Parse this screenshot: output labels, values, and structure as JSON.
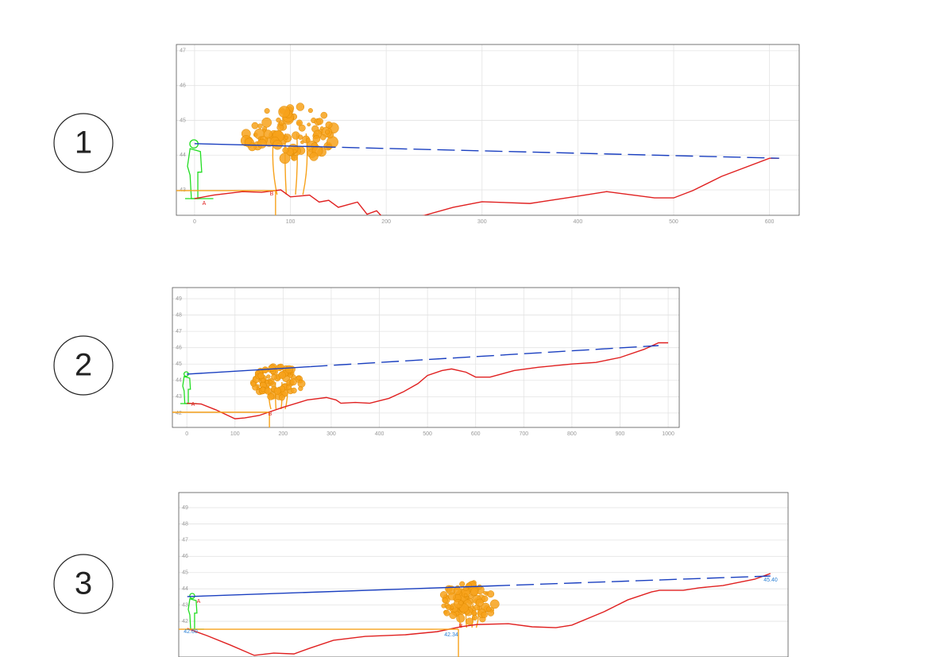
{
  "chart_data": [
    {
      "type": "line",
      "label": "1",
      "xlim": [
        -19,
        631
      ],
      "ylim": [
        42.27,
        47.18
      ],
      "xticks": [
        0,
        100,
        200,
        300,
        400,
        500,
        600
      ],
      "yticks": [
        43,
        44,
        45,
        46,
        47
      ],
      "grid": true,
      "annotations": [
        "A",
        "B"
      ],
      "series": [
        {
          "color": "#e02020",
          "style": "solid",
          "x": [
            0,
            20,
            50,
            70,
            90,
            100,
            120,
            130,
            140,
            150,
            170,
            180,
            190,
            200,
            230,
            240,
            270,
            300,
            350,
            400,
            430,
            480,
            500,
            520,
            550,
            600,
            610
          ],
          "values": [
            42.75,
            42.85,
            42.95,
            42.93,
            43.0,
            42.8,
            42.85,
            42.65,
            42.7,
            42.5,
            42.65,
            42.3,
            42.4,
            42.1,
            42.2,
            42.27,
            42.5,
            42.66,
            42.61,
            42.82,
            42.95,
            42.77,
            42.77,
            42.98,
            43.39,
            43.91,
            43.91
          ]
        },
        {
          "color": "#1a3fc0",
          "style": "solid",
          "x": [
            0,
            129
          ],
          "values": [
            44.33,
            44.24
          ]
        },
        {
          "color": "#1a3fc0",
          "style": "dashed",
          "x": [
            129,
            610
          ],
          "values": [
            44.24,
            43.91
          ]
        },
        {
          "color": "#f7a21b",
          "style": "solid",
          "x": [
            -19,
            84.5
          ],
          "values": [
            42.98,
            42.98
          ]
        },
        {
          "color": "#f7a21b",
          "style": "solid",
          "x": [
            84.5,
            84.5
          ],
          "values": [
            42.98,
            42.27
          ]
        }
      ]
    },
    {
      "type": "line",
      "label": "2",
      "xlim": [
        -30,
        1023
      ],
      "ylim": [
        41.12,
        49.68
      ],
      "xticks": [
        0,
        100,
        200,
        300,
        400,
        500,
        600,
        700,
        800,
        900,
        1000
      ],
      "yticks": [
        42,
        43,
        44,
        45,
        46,
        47,
        48,
        49
      ],
      "grid": true,
      "annotations": [
        "A",
        "B"
      ],
      "series": [
        {
          "color": "#e02020",
          "style": "solid",
          "x": [
            0,
            30,
            60,
            100,
            120,
            150,
            200,
            250,
            290,
            310,
            320,
            350,
            380,
            420,
            450,
            480,
            500,
            530,
            550,
            580,
            600,
            630,
            680,
            730,
            800,
            850,
            900,
            950,
            980,
            1000
          ],
          "values": [
            42.6,
            42.55,
            42.2,
            41.65,
            41.7,
            41.85,
            42.35,
            42.8,
            42.95,
            42.8,
            42.6,
            42.65,
            42.6,
            42.9,
            43.3,
            43.8,
            44.3,
            44.6,
            44.7,
            44.5,
            44.2,
            44.2,
            44.6,
            44.8,
            45.0,
            45.1,
            45.4,
            45.9,
            46.3,
            46.3
          ]
        },
        {
          "color": "#1a3fc0",
          "style": "solid",
          "x": [
            0,
            256
          ],
          "values": [
            44.38,
            44.84
          ]
        },
        {
          "color": "#1a3fc0",
          "style": "dashed",
          "x": [
            256,
            980
          ],
          "values": [
            44.84,
            46.13
          ]
        },
        {
          "color": "#f7a21b",
          "style": "solid",
          "x": [
            -30,
            171.6
          ],
          "values": [
            42.05,
            42.05
          ]
        },
        {
          "color": "#f7a21b",
          "style": "solid",
          "x": [
            171.6,
            171.6
          ],
          "values": [
            42.05,
            41.12
          ]
        }
      ]
    },
    {
      "type": "line",
      "label": "3",
      "xlim": [
        0,
        100
      ],
      "ylim": [
        39.8,
        49.93
      ],
      "yticks": [
        42,
        43,
        44,
        45,
        46,
        47,
        48,
        49
      ],
      "grid": true,
      "annotations": [
        "A",
        "B",
        "42.60",
        "42.34",
        "45.40"
      ],
      "series": [
        {
          "color": "#e02020",
          "style": "solid",
          "x": [
            1.4,
            4.6,
            8.5,
            12.4,
            15.6,
            18.9,
            21.5,
            25.4,
            30.6,
            37.2,
            42.4,
            46.3,
            48.9,
            54.1,
            58.0,
            61.9,
            64.5,
            69.8,
            73.7,
            77.6,
            78.9,
            82.8,
            85.4,
            89.3,
            94.5,
            97.1
          ],
          "values": [
            41.56,
            41.12,
            40.53,
            39.9,
            40.04,
            39.99,
            40.34,
            40.83,
            41.07,
            41.17,
            41.36,
            41.66,
            41.8,
            41.85,
            41.66,
            41.61,
            41.76,
            42.59,
            43.32,
            43.81,
            43.91,
            43.91,
            44.06,
            44.2,
            44.59,
            44.94
          ]
        },
        {
          "color": "#1a3fc0",
          "style": "solid",
          "x": [
            1.4,
            51.5
          ],
          "values": [
            43.52,
            44.18
          ]
        },
        {
          "color": "#1a3fc0",
          "style": "dashed",
          "x": [
            51.5,
            97.1
          ],
          "values": [
            44.18,
            44.79
          ]
        },
        {
          "color": "#f7a21b",
          "style": "solid",
          "x": [
            0,
            45.9
          ],
          "values": [
            41.51,
            41.51
          ]
        },
        {
          "color": "#f7a21b",
          "style": "solid",
          "x": [
            45.9,
            45.9
          ],
          "values": [
            41.51,
            39.8
          ]
        }
      ]
    }
  ]
}
